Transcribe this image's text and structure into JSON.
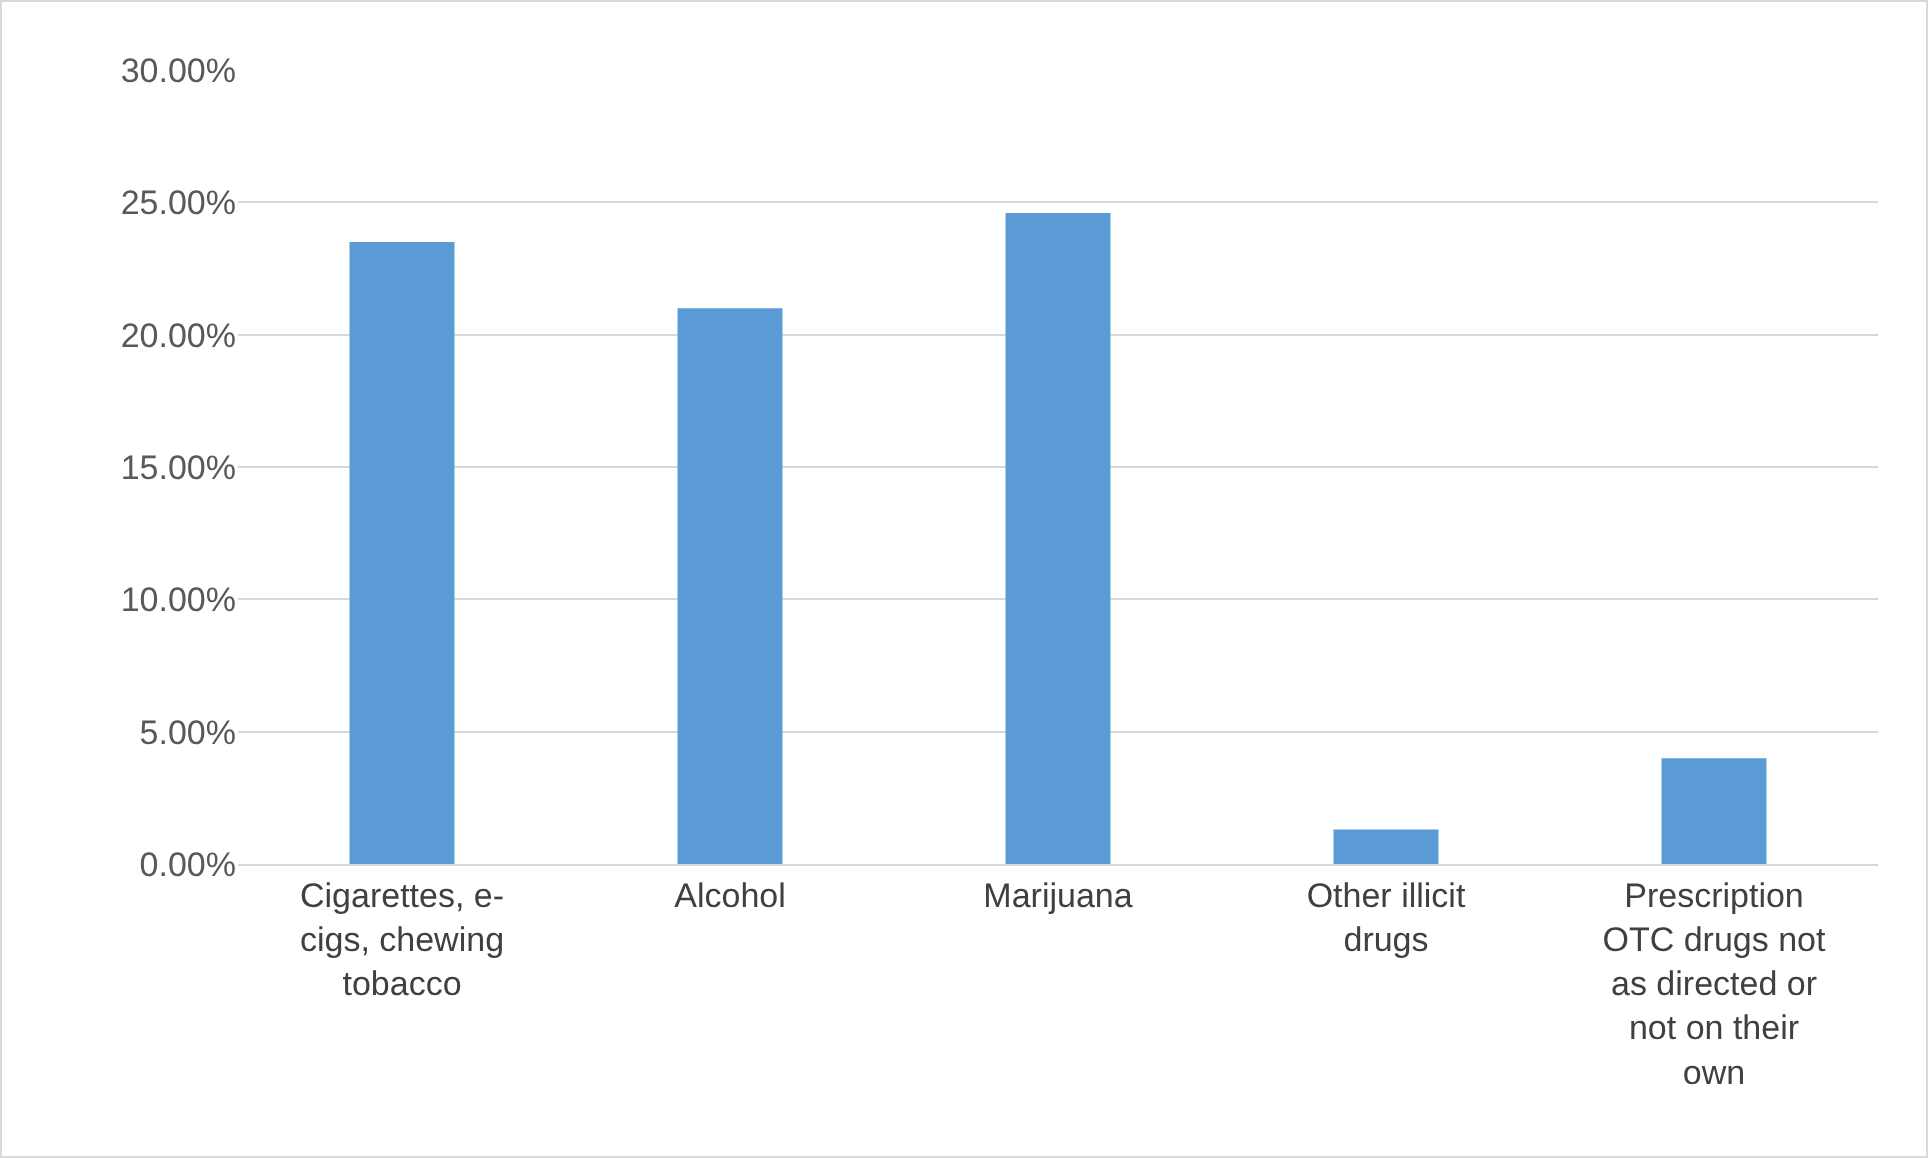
{
  "chart_data": {
    "type": "bar",
    "categories": [
      "Cigarettes, e-cigs, chewing tobacco",
      "Alcohol",
      "Marijuana",
      "Other illicit drugs",
      "Prescription OTC drugs not as directed or not on their own"
    ],
    "values": [
      23.5,
      21.0,
      24.6,
      1.3,
      4.0
    ],
    "color": "#5b9bd5",
    "ylim": [
      0,
      30
    ],
    "yticks": [
      {
        "value": 0,
        "label": "0.00%"
      },
      {
        "value": 5,
        "label": "5.00%"
      },
      {
        "value": 10,
        "label": "10.00%"
      },
      {
        "value": 15,
        "label": "15.00%"
      },
      {
        "value": 20,
        "label": "20.00%"
      },
      {
        "value": 25,
        "label": "25.00%"
      },
      {
        "value": 30,
        "label": "30.00%"
      }
    ],
    "grid": "y",
    "legend": false
  }
}
